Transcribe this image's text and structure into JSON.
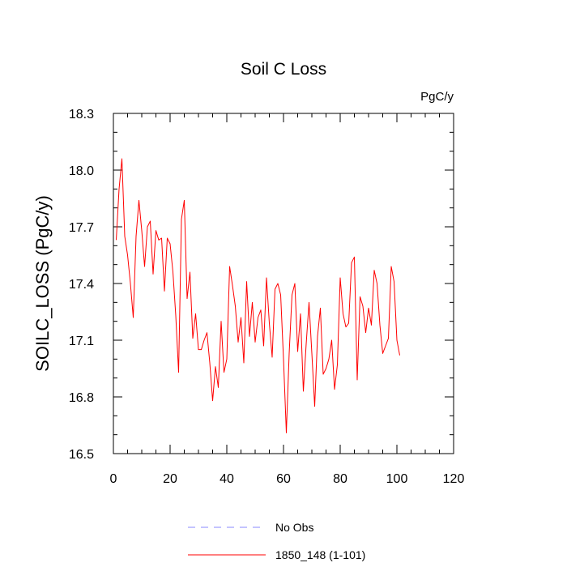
{
  "chart_data": {
    "type": "line",
    "title": "Soil C Loss",
    "units": "PgC/y",
    "ylabel": "SOILC_LOSS  (PgC/y)",
    "xlabel": "",
    "xlim": [
      0,
      120
    ],
    "ylim": [
      16.5,
      18.3
    ],
    "xticks": [
      0,
      20,
      40,
      60,
      80,
      100,
      120
    ],
    "xtick_labels": [
      "0",
      "20",
      "40",
      "60",
      "80",
      "100",
      "120"
    ],
    "yticks": [
      16.5,
      16.8,
      17.1,
      17.4,
      17.7,
      18.0,
      18.3
    ],
    "ytick_labels": [
      "16.5",
      "16.8",
      "17.1",
      "17.4",
      "17.7",
      "18.0",
      "18.3"
    ],
    "grid": false,
    "legend": {
      "placement": "bottom",
      "entries": [
        {
          "name": "No Obs",
          "color": "#8a8aff",
          "style": "dashed"
        },
        {
          "name": "1850_148 (1-101)",
          "color": "#ff0000",
          "style": "solid"
        }
      ]
    },
    "series": [
      {
        "name": "1850_148 (1-101)",
        "color": "#ff0000",
        "x": [
          1,
          2,
          3,
          4,
          5,
          6,
          7,
          8,
          9,
          10,
          11,
          12,
          13,
          14,
          15,
          16,
          17,
          18,
          19,
          20,
          21,
          22,
          23,
          24,
          25,
          26,
          27,
          28,
          29,
          30,
          31,
          32,
          33,
          34,
          35,
          36,
          37,
          38,
          39,
          40,
          41,
          42,
          43,
          44,
          45,
          46,
          47,
          48,
          49,
          50,
          51,
          52,
          53,
          54,
          55,
          56,
          57,
          58,
          59,
          60,
          61,
          62,
          63,
          64,
          65,
          66,
          67,
          68,
          69,
          70,
          71,
          72,
          73,
          74,
          75,
          76,
          77,
          78,
          79,
          80,
          81,
          82,
          83,
          84,
          85,
          86,
          87,
          88,
          89,
          90,
          91,
          92,
          93,
          94,
          95,
          96,
          97,
          98,
          99,
          100,
          101
        ],
        "values": [
          17.63,
          17.9,
          18.06,
          17.65,
          17.55,
          17.4,
          17.22,
          17.65,
          17.84,
          17.68,
          17.49,
          17.7,
          17.73,
          17.45,
          17.68,
          17.63,
          17.64,
          17.36,
          17.64,
          17.61,
          17.46,
          17.23,
          16.93,
          17.74,
          17.84,
          17.32,
          17.46,
          17.11,
          17.24,
          17.05,
          17.05,
          17.1,
          17.14,
          16.98,
          16.78,
          16.96,
          16.85,
          17.2,
          16.93,
          17.0,
          17.49,
          17.39,
          17.28,
          17.09,
          17.22,
          16.98,
          17.41,
          17.12,
          17.3,
          17.09,
          17.22,
          17.26,
          17.07,
          17.43,
          17.19,
          17.01,
          17.37,
          17.4,
          17.34,
          17.0,
          16.61,
          17.03,
          17.34,
          17.4,
          17.04,
          17.24,
          16.83,
          17.08,
          17.3,
          17.03,
          16.75,
          17.12,
          17.27,
          16.92,
          16.95,
          17.0,
          17.1,
          16.84,
          16.97,
          17.43,
          17.24,
          17.17,
          17.19,
          17.51,
          17.54,
          16.89,
          17.33,
          17.28,
          17.14,
          17.27,
          17.18,
          17.47,
          17.4,
          17.18,
          17.03,
          17.07,
          17.11,
          17.49,
          17.41,
          17.1,
          17.02
        ]
      }
    ]
  }
}
